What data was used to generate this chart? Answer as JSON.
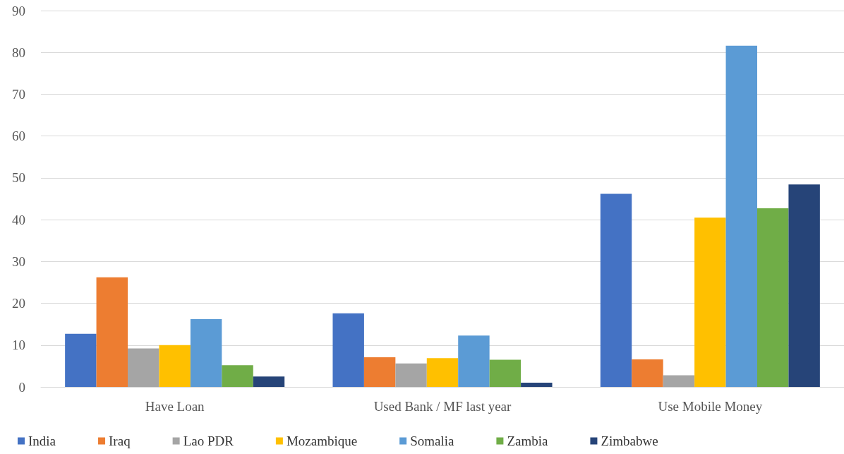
{
  "chart_data": {
    "type": "bar",
    "categories": [
      "Have Loan",
      "Used Bank / MF last year",
      "Use Mobile Money"
    ],
    "series": [
      {
        "name": "India",
        "color": "#4472c4",
        "values": [
          12.7,
          17.6,
          46.2
        ]
      },
      {
        "name": "Iraq",
        "color": "#ed7d31",
        "values": [
          26.2,
          7.1,
          6.6
        ]
      },
      {
        "name": "Lao PDR",
        "color": "#a5a5a5",
        "values": [
          9.2,
          5.6,
          2.8
        ]
      },
      {
        "name": "Mozambique",
        "color": "#ffc000",
        "values": [
          10,
          6.9,
          40.5
        ]
      },
      {
        "name": "Somalia",
        "color": "#5b9bd5",
        "values": [
          16.2,
          12.3,
          81.6
        ]
      },
      {
        "name": "Zambia",
        "color": "#70ad47",
        "values": [
          5.2,
          6.5,
          42.7
        ]
      },
      {
        "name": "Zimbabwe",
        "color": "#264478",
        "values": [
          2.5,
          1.0,
          48.4
        ]
      }
    ],
    "ylim": [
      0,
      90
    ],
    "yticks": [
      0,
      10,
      20,
      30,
      40,
      50,
      60,
      70,
      80,
      90
    ],
    "grid": "y",
    "legend": "bottom left"
  }
}
